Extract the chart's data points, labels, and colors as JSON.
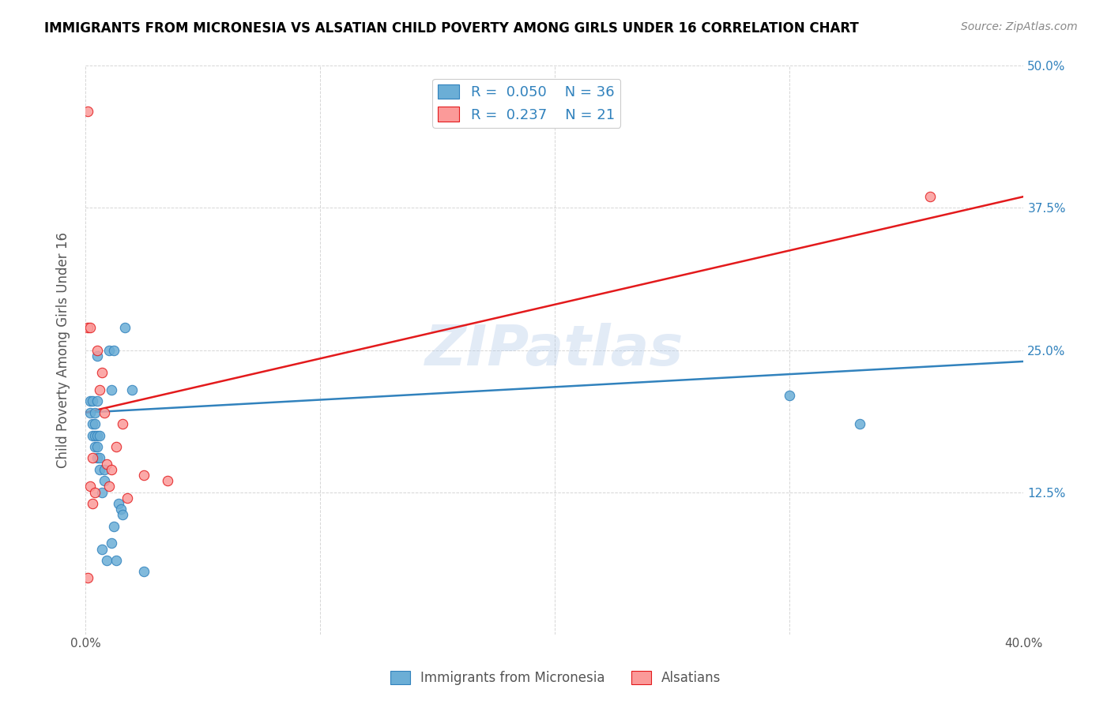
{
  "title": "IMMIGRANTS FROM MICRONESIA VS ALSATIAN CHILD POVERTY AMONG GIRLS UNDER 16 CORRELATION CHART",
  "source": "Source: ZipAtlas.com",
  "xlabel": "",
  "ylabel": "Child Poverty Among Girls Under 16",
  "xmin": 0.0,
  "xmax": 0.4,
  "ymin": 0.0,
  "ymax": 0.5,
  "xticks": [
    0.0,
    0.05,
    0.1,
    0.15,
    0.2,
    0.25,
    0.3,
    0.35,
    0.4
  ],
  "xtick_labels": [
    "0.0%",
    "",
    "",
    "",
    "",
    "",
    "",
    "",
    "40.0%"
  ],
  "ytick_labels_right": [
    "",
    "12.5%",
    "",
    "25.0%",
    "",
    "37.5%",
    "",
    "50.0%"
  ],
  "blue_R": "0.050",
  "blue_N": "36",
  "pink_R": "0.237",
  "pink_N": "21",
  "blue_color": "#6baed6",
  "pink_color": "#fb9a99",
  "blue_line_color": "#3182bd",
  "pink_line_color": "#e31a1c",
  "legend_label_blue": "Immigrants from Micronesia",
  "legend_label_pink": "Alsatians",
  "watermark": "ZIPatlas",
  "blue_points_x": [
    0.002,
    0.002,
    0.003,
    0.003,
    0.003,
    0.004,
    0.004,
    0.004,
    0.004,
    0.005,
    0.005,
    0.005,
    0.005,
    0.005,
    0.006,
    0.006,
    0.006,
    0.007,
    0.007,
    0.008,
    0.008,
    0.009,
    0.01,
    0.011,
    0.011,
    0.012,
    0.012,
    0.013,
    0.014,
    0.015,
    0.016,
    0.017,
    0.02,
    0.025,
    0.3,
    0.33
  ],
  "blue_points_y": [
    0.195,
    0.205,
    0.175,
    0.185,
    0.205,
    0.165,
    0.175,
    0.185,
    0.195,
    0.155,
    0.165,
    0.175,
    0.245,
    0.205,
    0.145,
    0.155,
    0.175,
    0.075,
    0.125,
    0.135,
    0.145,
    0.065,
    0.25,
    0.08,
    0.215,
    0.25,
    0.095,
    0.065,
    0.115,
    0.11,
    0.105,
    0.27,
    0.215,
    0.055,
    0.21,
    0.185
  ],
  "pink_points_x": [
    0.001,
    0.001,
    0.002,
    0.002,
    0.003,
    0.003,
    0.004,
    0.005,
    0.006,
    0.007,
    0.008,
    0.009,
    0.01,
    0.011,
    0.013,
    0.016,
    0.018,
    0.025,
    0.035,
    0.36,
    0.001
  ],
  "pink_points_y": [
    0.46,
    0.27,
    0.27,
    0.13,
    0.155,
    0.115,
    0.125,
    0.25,
    0.215,
    0.23,
    0.195,
    0.15,
    0.13,
    0.145,
    0.165,
    0.185,
    0.12,
    0.14,
    0.135,
    0.385,
    0.05
  ],
  "blue_trendline_x": [
    0.0,
    0.4
  ],
  "blue_trendline_y": [
    0.195,
    0.24
  ],
  "pink_trendline_x": [
    0.0,
    0.4
  ],
  "pink_trendline_y": [
    0.195,
    0.385
  ]
}
